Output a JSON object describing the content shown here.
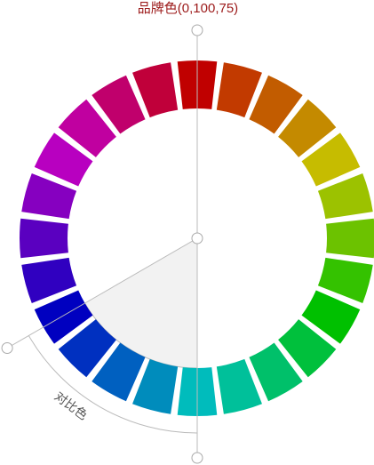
{
  "top_label": {
    "text": "品牌色(0,100,75)",
    "color": "#9c1a1a"
  },
  "contrast_label": {
    "text": "对比色",
    "color": "#555555"
  },
  "segments": [
    "#c00000",
    "#c23a00",
    "#c25c00",
    "#c48a00",
    "#c6bc00",
    "#9cc200",
    "#6cc200",
    "#34c200",
    "#00c000",
    "#00c03c",
    "#00c06a",
    "#00c09a",
    "#00bcbc",
    "#008cbc",
    "#0060c0",
    "#0030c0",
    "#0000c0",
    "#3000c0",
    "#5a00c0",
    "#8600c0",
    "#b800c0",
    "#c000a0",
    "#c0006c",
    "#c0003a"
  ],
  "colors": {
    "sector_fill": "#f2f2f2",
    "guide_line": "#bbbbbb",
    "handle_fill": "#ffffff",
    "handle_stroke": "#aaaaaa"
  }
}
